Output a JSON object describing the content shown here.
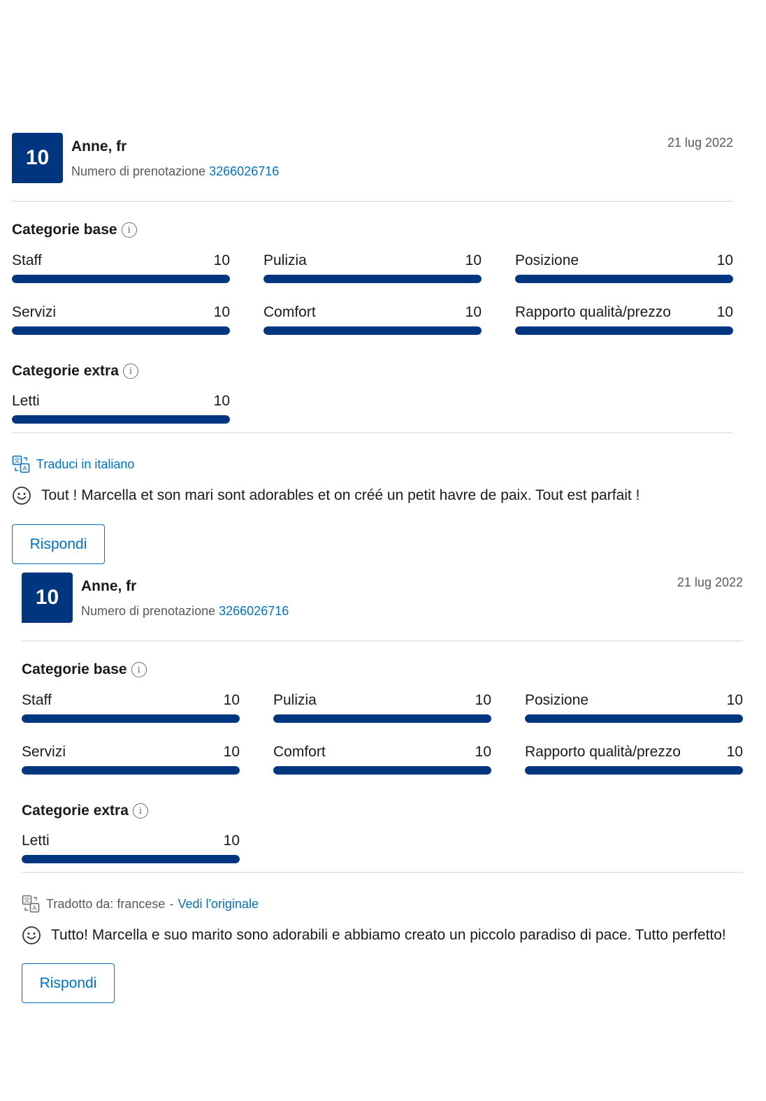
{
  "colors": {
    "brand_navy": "#003580",
    "link_blue": "#0071c2",
    "divider": "#e7e7e7",
    "muted_text": "#595959"
  },
  "reviews": [
    {
      "score": "10",
      "reviewer": "Anne, fr",
      "booking_label": "Numero di prenotazione",
      "booking_number": "3266026716",
      "date": "21 lug 2022",
      "base_title": "Categorie base",
      "base_categories": [
        {
          "label": "Staff",
          "score": "10",
          "fill_pct": 100
        },
        {
          "label": "Pulizia",
          "score": "10",
          "fill_pct": 100
        },
        {
          "label": "Posizione",
          "score": "10",
          "fill_pct": 100
        },
        {
          "label": "Servizi",
          "score": "10",
          "fill_pct": 100
        },
        {
          "label": "Comfort",
          "score": "10",
          "fill_pct": 100
        },
        {
          "label": "Rapporto qualità/prezzo",
          "score": "10",
          "fill_pct": 100
        }
      ],
      "extra_title": "Categorie extra",
      "extra_categories": [
        {
          "label": "Letti",
          "score": "10",
          "fill_pct": 100
        }
      ],
      "translate_link": "Traduci in italiano",
      "comment": "Tout ! Marcella et son mari sont adorables et on créé un petit havre de paix. Tout est parfait !",
      "reply_label": "Rispondi"
    },
    {
      "score": "10",
      "reviewer": "Anne, fr",
      "booking_label": "Numero di prenotazione",
      "booking_number": "3266026716",
      "date": "21 lug 2022",
      "base_title": "Categorie base",
      "base_categories": [
        {
          "label": "Staff",
          "score": "10",
          "fill_pct": 100
        },
        {
          "label": "Pulizia",
          "score": "10",
          "fill_pct": 100
        },
        {
          "label": "Posizione",
          "score": "10",
          "fill_pct": 100
        },
        {
          "label": "Servizi",
          "score": "10",
          "fill_pct": 100
        },
        {
          "label": "Comfort",
          "score": "10",
          "fill_pct": 100
        },
        {
          "label": "Rapporto qualità/prezzo",
          "score": "10",
          "fill_pct": 100
        }
      ],
      "extra_title": "Categorie extra",
      "extra_categories": [
        {
          "label": "Letti",
          "score": "10",
          "fill_pct": 100
        }
      ],
      "translated_from": "Tradotto da: francese",
      "translate_separator": "-",
      "see_original_link": "Vedi l'originale",
      "comment": "Tutto! Marcella e suo marito sono adorabili e abbiamo creato un piccolo paradiso di pace. Tutto perfetto!",
      "reply_label": "Rispondi"
    }
  ]
}
